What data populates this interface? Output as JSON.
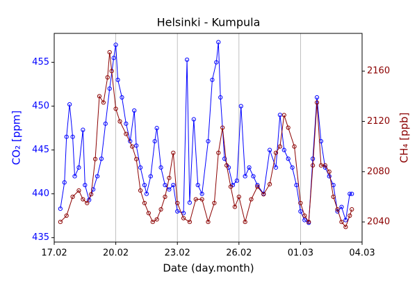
{
  "chart_data": {
    "type": "line",
    "title": "Helsinki - Kumpula",
    "xlabel": "Date (day.month)",
    "ylabel": "CO₂ [ppm]",
    "y2label": "CH₄ [ppb]",
    "xlim": [
      0,
      15
    ],
    "xticks": [
      {
        "value": 0,
        "label": "17.02"
      },
      {
        "value": 3,
        "label": "20.02"
      },
      {
        "value": 6,
        "label": "23.02"
      },
      {
        "value": 9,
        "label": "26.02"
      },
      {
        "value": 12,
        "label": "01.03"
      },
      {
        "value": 15,
        "label": "04.03"
      }
    ],
    "ylim": [
      434.5,
      458.3
    ],
    "yticks": [
      435,
      440,
      445,
      450,
      455
    ],
    "y2lim": [
      2024,
      2190
    ],
    "y2ticks": [
      2040,
      2080,
      2120,
      2160
    ],
    "grid": "x",
    "series": [
      {
        "name": "CO₂",
        "color": "#0000ff",
        "x": [
          0.3,
          0.5,
          0.6,
          0.75,
          0.9,
          1.0,
          1.2,
          1.4,
          1.5,
          1.7,
          1.9,
          2.1,
          2.3,
          2.5,
          2.7,
          2.9,
          3.0,
          3.1,
          3.3,
          3.5,
          3.7,
          3.9,
          4.0,
          4.2,
          4.4,
          4.5,
          4.7,
          4.9,
          5.0,
          5.2,
          5.4,
          5.6,
          5.8,
          6.0,
          6.3,
          6.47,
          6.6,
          6.8,
          7.0,
          7.2,
          7.5,
          7.7,
          7.9,
          8.0,
          8.1,
          8.3,
          8.5,
          8.7,
          8.9,
          9.1,
          9.3,
          9.5,
          9.7,
          9.9,
          10.2,
          10.5,
          10.8,
          11.0,
          11.2,
          11.4,
          11.6,
          11.8,
          12.0,
          12.2,
          12.4,
          12.6,
          12.8,
          13.0,
          13.2,
          13.4,
          13.6,
          13.8,
          14.0,
          14.2,
          14.4,
          14.5
        ],
        "values": [
          438.3,
          441.3,
          446.5,
          450.2,
          446.5,
          442,
          443,
          447.3,
          441,
          439.3,
          440.5,
          442,
          444,
          448,
          452,
          455.5,
          457,
          453,
          451,
          448,
          446,
          449.5,
          445.5,
          443,
          441,
          440,
          442,
          446,
          447.5,
          443,
          441,
          440.5,
          441,
          438,
          437.8,
          455.3,
          439,
          448.5,
          441,
          440,
          446,
          453,
          455,
          457.3,
          451,
          444,
          443,
          441,
          441.5,
          450,
          442,
          443,
          442,
          441,
          440,
          445,
          443,
          449,
          445,
          444,
          443,
          441,
          438,
          437,
          436.7,
          444,
          451,
          446,
          443,
          442,
          441,
          438,
          438.5,
          437,
          440,
          440
        ]
      },
      {
        "name": "CH₄",
        "color": "#8b0000",
        "axis": "y2",
        "x": [
          0.3,
          0.6,
          0.9,
          1.2,
          1.4,
          1.6,
          1.8,
          2.0,
          2.2,
          2.4,
          2.6,
          2.7,
          2.8,
          3.0,
          3.2,
          3.5,
          3.8,
          4.0,
          4.2,
          4.4,
          4.6,
          4.8,
          5.0,
          5.2,
          5.4,
          5.6,
          5.8,
          6.0,
          6.3,
          6.6,
          6.9,
          7.2,
          7.5,
          7.8,
          8.0,
          8.2,
          8.4,
          8.6,
          8.8,
          9.0,
          9.3,
          9.6,
          9.9,
          10.2,
          10.5,
          10.8,
          11.0,
          11.2,
          11.4,
          11.7,
          12.0,
          12.2,
          12.4,
          12.6,
          12.8,
          13.0,
          13.2,
          13.4,
          13.6,
          13.8,
          14.0,
          14.2,
          14.4,
          14.5
        ],
        "values": [
          2040,
          2045,
          2060,
          2065,
          2058,
          2055,
          2062,
          2090,
          2140,
          2135,
          2155,
          2175,
          2160,
          2130,
          2120,
          2110,
          2100,
          2090,
          2065,
          2055,
          2047,
          2040,
          2042,
          2050,
          2060,
          2075,
          2095,
          2055,
          2043,
          2040,
          2058,
          2058,
          2040,
          2055,
          2095,
          2115,
          2085,
          2068,
          2052,
          2060,
          2040,
          2058,
          2068,
          2062,
          2070,
          2095,
          2100,
          2125,
          2115,
          2100,
          2055,
          2045,
          2040,
          2085,
          2135,
          2085,
          2085,
          2080,
          2060,
          2050,
          2040,
          2036,
          2045,
          2050
        ]
      }
    ]
  }
}
